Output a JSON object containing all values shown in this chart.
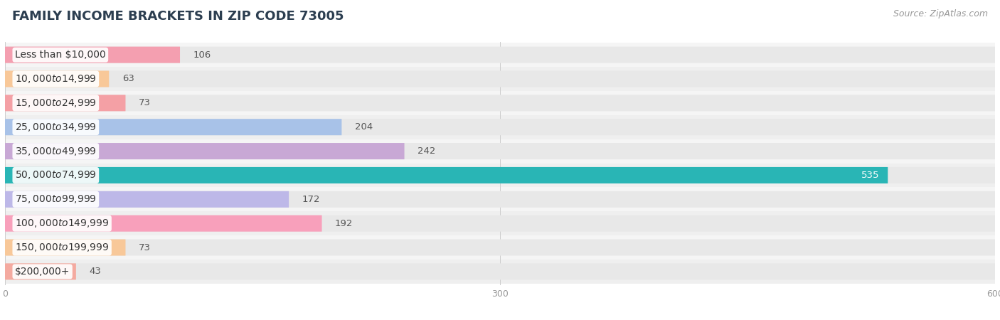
{
  "title": "FAMILY INCOME BRACKETS IN ZIP CODE 73005",
  "source": "Source: ZipAtlas.com",
  "categories": [
    "Less than $10,000",
    "$10,000 to $14,999",
    "$15,000 to $24,999",
    "$25,000 to $34,999",
    "$35,000 to $49,999",
    "$50,000 to $74,999",
    "$75,000 to $99,999",
    "$100,000 to $149,999",
    "$150,000 to $199,999",
    "$200,000+"
  ],
  "values": [
    106,
    63,
    73,
    204,
    242,
    535,
    172,
    192,
    73,
    43
  ],
  "bar_colors": [
    "#f49fb0",
    "#f8c899",
    "#f4a0a5",
    "#a8c2e8",
    "#c8a8d5",
    "#29b5b5",
    "#bdb8e8",
    "#f8a0bb",
    "#f8c899",
    "#f4aaa0"
  ],
  "row_colors": [
    "#f5f5f5",
    "#efefef"
  ],
  "bar_bg_color": "#e8e8e8",
  "xlim": [
    0,
    600
  ],
  "xticks": [
    0,
    300,
    600
  ],
  "title_fontsize": 13,
  "source_fontsize": 9,
  "label_fontsize": 10,
  "value_fontsize": 9.5
}
